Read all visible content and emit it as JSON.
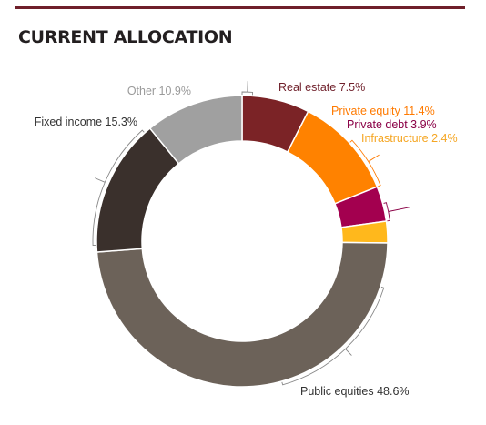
{
  "title": "CURRENT ALLOCATION",
  "colors": {
    "rule": "#6f1f2a",
    "title": "#231f20",
    "label_default": "#333333",
    "leader": "#888888"
  },
  "chart_data": {
    "type": "pie",
    "donut": true,
    "title": "CURRENT ALLOCATION",
    "unit": "%",
    "slices": [
      {
        "name": "Real estate",
        "value": 7.5,
        "label": "Real estate 7.5%",
        "color": "#7b2326",
        "label_color": "#6f1f2a"
      },
      {
        "name": "Private equity",
        "value": 11.4,
        "label": "Private equity 11.4%",
        "color": "#ff8200",
        "label_color": "#ff7a00"
      },
      {
        "name": "Private debt",
        "value": 3.9,
        "label": "Private debt 3.9%",
        "color": "#a3004f",
        "label_color": "#8a0046"
      },
      {
        "name": "Infrastructure",
        "value": 2.4,
        "label": "Infrastructure 2.4%",
        "color": "#ffb81c",
        "label_color": "#f5a623"
      },
      {
        "name": "Public equities",
        "value": 48.6,
        "label": "Public equities 48.6%",
        "color": "#6c6259",
        "label_color": "#333333"
      },
      {
        "name": "Fixed income",
        "value": 15.3,
        "label": "Fixed income 15.3%",
        "color": "#3a302c",
        "label_color": "#333333"
      },
      {
        "name": "Other",
        "value": 10.9,
        "label": "Other 10.9%",
        "color": "#a0a0a0",
        "label_color": "#9a9a9a"
      }
    ]
  }
}
